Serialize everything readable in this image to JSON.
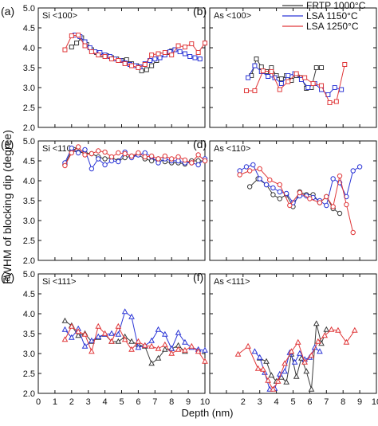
{
  "figure": {
    "ylabel": "FWHM of blocking dip (degree)",
    "xlabel": "Depth (nm)",
    "x_ticks": [
      "0",
      "1",
      "2",
      "3",
      "4",
      "5",
      "6",
      "7",
      "8",
      "9",
      "10"
    ],
    "right_x_ticks": [
      "2",
      "3",
      "4",
      "5",
      "6",
      "7",
      "8",
      "9",
      "10"
    ],
    "y_ticks": [
      "2.0",
      "2.5",
      "3.0",
      "3.5",
      "4.0",
      "4.5",
      "5.0"
    ],
    "legend": [
      {
        "label": "FRTP 1000°C",
        "color": "#3a3a3a",
        "marker": "none"
      },
      {
        "label": "LSA   1150°C",
        "color": "#2c36d6",
        "marker": "none"
      },
      {
        "label": "LSA   1250°C",
        "color": "#e0383a",
        "marker": "none"
      }
    ]
  },
  "chart_data": [
    {
      "type": "line",
      "panel": "(a)",
      "label": "Si <100>",
      "marker": "square",
      "xlim": [
        0,
        10
      ],
      "ylim": [
        2.0,
        5.0
      ],
      "grid": false,
      "series": [
        {
          "color": "#3a3a3a",
          "x": [
            2.0,
            2.3,
            2.6,
            2.9,
            3.2,
            3.5,
            3.8,
            4.1,
            4.4,
            4.7,
            5.0,
            5.3,
            5.6,
            5.9,
            6.2,
            6.5,
            6.8,
            7.1,
            7.4,
            7.7,
            8.0
          ],
          "y": [
            4.02,
            4.12,
            4.25,
            4.08,
            3.95,
            3.88,
            3.82,
            3.8,
            3.75,
            3.72,
            3.68,
            3.7,
            3.6,
            3.55,
            3.42,
            3.45,
            3.55,
            3.68,
            3.82,
            3.88,
            3.92
          ]
        },
        {
          "color": "#2c36d6",
          "x": [
            2.2,
            2.5,
            2.8,
            3.1,
            3.4,
            3.7,
            4.0,
            4.3,
            4.6,
            4.9,
            5.2,
            5.5,
            5.8,
            6.1,
            6.4,
            6.7,
            7.0,
            7.3,
            7.6,
            7.9,
            8.2,
            8.5,
            8.8,
            9.1,
            9.4,
            9.7
          ],
          "y": [
            4.32,
            4.28,
            4.15,
            4.0,
            3.9,
            3.88,
            3.82,
            3.78,
            3.72,
            3.68,
            3.62,
            3.58,
            3.55,
            3.52,
            3.6,
            3.68,
            3.72,
            3.75,
            3.82,
            3.9,
            3.95,
            3.9,
            3.85,
            3.78,
            3.75,
            3.72
          ]
        },
        {
          "color": "#e0383a",
          "x": [
            1.6,
            2.0,
            2.4,
            2.8,
            3.2,
            3.6,
            4.0,
            4.4,
            4.8,
            5.2,
            5.6,
            6.0,
            6.4,
            6.8,
            7.2,
            7.6,
            8.0,
            8.4,
            8.8,
            9.2,
            9.6,
            10.0
          ],
          "y": [
            3.95,
            4.3,
            4.32,
            4.05,
            3.9,
            3.82,
            3.78,
            3.72,
            3.68,
            3.6,
            3.55,
            3.5,
            3.58,
            3.82,
            3.85,
            3.88,
            3.82,
            4.05,
            4.02,
            4.1,
            3.88,
            4.12
          ]
        }
      ]
    },
    {
      "type": "line",
      "panel": "(b)",
      "label": "As <100>",
      "marker": "square",
      "xlim": [
        0,
        10
      ],
      "ylim": [
        2.0,
        5.0
      ],
      "grid": false,
      "series": [
        {
          "color": "#3a3a3a",
          "x": [
            2.5,
            2.8,
            3.1,
            3.4,
            3.7,
            4.0,
            4.3,
            4.6,
            4.9,
            5.2,
            5.5,
            5.8,
            6.1,
            6.4,
            6.7
          ],
          "y": [
            3.3,
            3.72,
            3.52,
            3.4,
            3.5,
            3.3,
            3.22,
            3.3,
            3.18,
            3.3,
            3.25,
            2.98,
            3.0,
            3.5,
            3.5
          ]
        },
        {
          "color": "#2c36d6",
          "x": [
            2.3,
            2.7,
            3.1,
            3.5,
            3.9,
            4.3,
            4.7,
            5.1,
            5.5,
            5.9,
            6.3,
            6.7,
            7.1,
            7.5,
            7.9
          ],
          "y": [
            3.25,
            3.55,
            3.4,
            3.28,
            3.25,
            3.1,
            3.3,
            3.35,
            3.2,
            3.0,
            3.1,
            2.95,
            2.82,
            3.0,
            2.95
          ]
        },
        {
          "color": "#e0383a",
          "x": [
            2.2,
            2.7,
            3.2,
            3.7,
            4.2,
            4.7,
            5.2,
            5.7,
            6.2,
            6.7,
            7.2,
            7.6,
            8.1
          ],
          "y": [
            2.92,
            2.92,
            3.42,
            3.4,
            2.95,
            3.15,
            3.35,
            3.25,
            3.1,
            3.05,
            2.62,
            2.65,
            3.58
          ]
        }
      ]
    },
    {
      "type": "line",
      "panel": "(c)",
      "label": "Si <110>",
      "marker": "circle",
      "xlim": [
        0,
        10
      ],
      "ylim": [
        2.0,
        5.0
      ],
      "grid": false,
      "series": [
        {
          "color": "#3a3a3a",
          "x": [
            1.6,
            2.0,
            2.4,
            2.8,
            3.2,
            3.6,
            4.0,
            4.4,
            4.8,
            5.2,
            5.6,
            6.0,
            6.4,
            6.8,
            7.2,
            7.6,
            8.0,
            8.4,
            8.8,
            9.2,
            9.6,
            10.0
          ],
          "y": [
            4.4,
            4.75,
            4.72,
            4.7,
            4.68,
            4.6,
            4.55,
            4.58,
            4.5,
            4.58,
            4.62,
            4.65,
            4.55,
            4.5,
            4.55,
            4.48,
            4.45,
            4.45,
            4.42,
            4.5,
            4.5,
            4.5
          ]
        },
        {
          "color": "#2c36d6",
          "x": [
            1.6,
            2.0,
            2.4,
            2.8,
            3.2,
            3.6,
            4.0,
            4.4,
            4.8,
            5.2,
            5.6,
            6.0,
            6.4,
            6.8,
            7.2,
            7.6,
            8.0,
            8.4,
            8.8,
            9.2,
            9.6,
            10.0
          ],
          "y": [
            4.45,
            4.82,
            4.7,
            4.78,
            4.3,
            4.55,
            4.4,
            4.5,
            4.48,
            4.72,
            4.58,
            4.65,
            4.7,
            4.6,
            4.45,
            4.55,
            4.5,
            4.5,
            4.45,
            4.45,
            4.4,
            4.55
          ]
        },
        {
          "color": "#e0383a",
          "x": [
            1.6,
            2.0,
            2.4,
            2.8,
            3.2,
            3.6,
            4.0,
            4.4,
            4.8,
            5.2,
            5.6,
            6.0,
            6.4,
            6.8,
            7.2,
            7.6,
            8.0,
            8.4,
            8.8,
            9.2,
            9.6,
            10.0
          ],
          "y": [
            4.38,
            4.7,
            4.85,
            4.65,
            4.68,
            4.75,
            4.72,
            4.6,
            4.7,
            4.68,
            4.62,
            4.7,
            4.6,
            4.62,
            4.55,
            4.62,
            4.55,
            4.6,
            4.52,
            4.45,
            4.65,
            4.5
          ]
        }
      ]
    },
    {
      "type": "line",
      "panel": "(d)",
      "label": "As <110>",
      "marker": "circle",
      "xlim": [
        0,
        10
      ],
      "ylim": [
        2.0,
        5.0
      ],
      "grid": false,
      "series": [
        {
          "color": "#3a3a3a",
          "x": [
            2.4,
            2.9,
            3.4,
            3.8,
            4.2,
            4.6,
            5.0,
            5.4,
            5.8,
            6.2,
            6.6,
            7.0,
            7.4,
            7.8
          ],
          "y": [
            3.85,
            4.05,
            3.9,
            3.65,
            3.55,
            3.65,
            3.35,
            3.72,
            3.65,
            3.65,
            3.45,
            3.6,
            3.3,
            3.18
          ]
        },
        {
          "color": "#2c36d6",
          "x": [
            1.8,
            2.2,
            2.6,
            3.0,
            3.4,
            3.8,
            4.2,
            4.6,
            5.0,
            5.4,
            5.8,
            6.2,
            6.6,
            7.0,
            7.4,
            7.8,
            8.2,
            8.6,
            9.0
          ],
          "y": [
            4.25,
            4.35,
            4.4,
            4.05,
            3.9,
            3.82,
            3.72,
            3.68,
            3.45,
            3.62,
            3.62,
            3.58,
            3.5,
            3.38,
            4.05,
            3.95,
            3.6,
            4.25,
            4.35
          ]
        },
        {
          "color": "#e0383a",
          "x": [
            1.8,
            2.4,
            3.0,
            3.6,
            4.2,
            4.8,
            5.4,
            6.0,
            6.6,
            7.0,
            7.4,
            7.8,
            8.2,
            8.6
          ],
          "y": [
            4.15,
            4.25,
            4.3,
            4.02,
            3.9,
            3.38,
            3.7,
            3.55,
            3.45,
            3.6,
            3.35,
            4.12,
            3.4,
            2.7
          ]
        }
      ]
    },
    {
      "type": "line",
      "panel": "(e)",
      "label": "Si <111>",
      "marker": "triangle",
      "xlim": [
        0,
        10
      ],
      "ylim": [
        2.0,
        5.0
      ],
      "grid": false,
      "series": [
        {
          "color": "#3a3a3a",
          "x": [
            1.6,
            2.0,
            2.4,
            2.8,
            3.2,
            3.6,
            4.0,
            4.4,
            4.8,
            5.2,
            5.6,
            6.0,
            6.4,
            6.8,
            7.2,
            7.6,
            8.0,
            8.4,
            8.8
          ],
          "y": [
            3.82,
            3.7,
            3.45,
            3.5,
            3.3,
            3.4,
            3.48,
            3.3,
            3.3,
            3.42,
            3.3,
            3.22,
            3.18,
            2.75,
            2.88,
            3.1,
            3.12,
            3.2,
            3.05
          ]
        },
        {
          "color": "#2c36d6",
          "x": [
            1.6,
            2.0,
            2.4,
            2.8,
            3.2,
            3.6,
            4.0,
            4.4,
            4.8,
            5.2,
            5.6,
            6.0,
            6.4,
            6.8,
            7.2,
            7.6,
            8.0,
            8.4,
            8.8,
            9.2,
            9.6,
            10.0
          ],
          "y": [
            3.6,
            3.4,
            3.62,
            3.18,
            3.32,
            3.42,
            3.48,
            3.5,
            3.48,
            4.05,
            3.92,
            3.15,
            3.2,
            3.32,
            3.6,
            3.48,
            3.12,
            3.52,
            3.28,
            3.15,
            3.1,
            3.08
          ]
        },
        {
          "color": "#e0383a",
          "x": [
            1.6,
            2.0,
            2.4,
            2.8,
            3.2,
            3.6,
            4.0,
            4.4,
            4.8,
            5.2,
            5.6,
            6.0,
            6.4,
            6.8,
            7.2,
            7.6,
            8.0,
            8.4,
            8.8,
            9.2,
            9.6,
            10.0
          ],
          "y": [
            3.35,
            3.68,
            3.55,
            3.48,
            3.05,
            3.68,
            3.5,
            3.3,
            3.68,
            3.35,
            3.1,
            3.3,
            3.2,
            3.18,
            3.12,
            3.22,
            3.0,
            3.1,
            3.08,
            3.18,
            3.05,
            2.8
          ]
        }
      ]
    },
    {
      "type": "line",
      "panel": "(f)",
      "label": "As <111>",
      "marker": "triangle",
      "xlim": [
        0,
        10
      ],
      "ylim": [
        2.0,
        5.0
      ],
      "grid": false,
      "series": [
        {
          "color": "#3a3a3a",
          "x": [
            3.0,
            3.4,
            3.7,
            4.0,
            4.3,
            4.6,
            4.9,
            5.2,
            5.5,
            5.8,
            6.1,
            6.4,
            6.7,
            7.0
          ],
          "y": [
            2.88,
            2.8,
            2.45,
            2.3,
            2.4,
            2.28,
            2.98,
            2.42,
            2.88,
            2.55,
            2.1,
            3.75,
            3.25,
            3.6
          ]
        },
        {
          "color": "#2c36d6",
          "x": [
            2.7,
            3.0,
            3.3,
            3.6,
            3.9,
            4.2,
            4.5,
            4.8,
            5.1,
            5.4,
            5.7,
            6.0,
            6.3,
            6.6
          ],
          "y": [
            3.05,
            2.9,
            2.52,
            2.1,
            2.12,
            2.48,
            2.55,
            3.02,
            2.78,
            3.0,
            2.85,
            2.9,
            3.15,
            3.05
          ]
        },
        {
          "color": "#e0383a",
          "x": [
            1.7,
            2.3,
            2.9,
            3.2,
            3.5,
            3.8,
            4.1,
            4.5,
            4.9,
            5.3,
            5.7,
            6.1,
            6.5,
            6.9,
            7.3,
            7.7,
            8.2,
            8.7
          ],
          "y": [
            2.98,
            3.18,
            2.62,
            2.6,
            2.32,
            2.1,
            2.3,
            2.75,
            3.05,
            3.28,
            2.78,
            2.95,
            3.3,
            3.45,
            3.6,
            3.58,
            3.28,
            3.58
          ]
        }
      ]
    }
  ]
}
